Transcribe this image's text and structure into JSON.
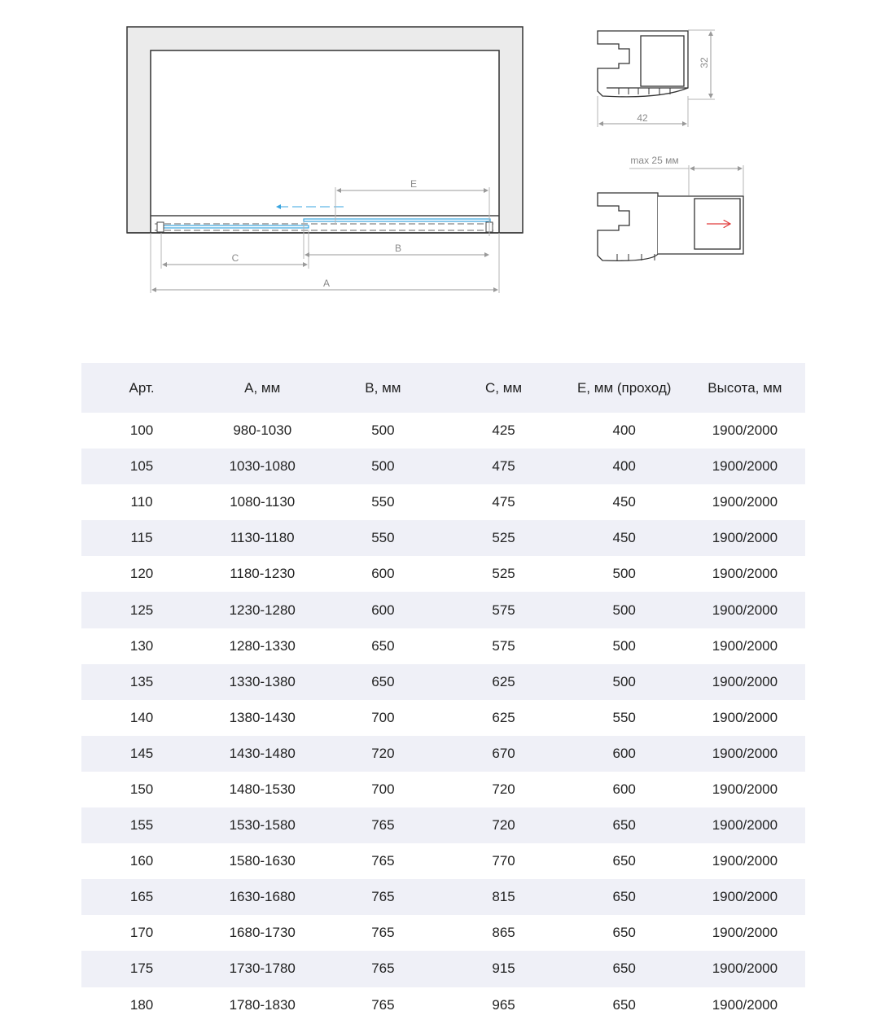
{
  "drawing": {
    "dimension_labels": {
      "A": "A",
      "B": "B",
      "C": "C",
      "E": "E"
    },
    "profile": {
      "height": "32",
      "width": "42",
      "extension": "max 25 мм"
    },
    "colors": {
      "glass": "#3aa5e0",
      "arrow_extension": "#e03a3a",
      "wall": "#ebebeb",
      "dimension": "#9a9a9a"
    }
  },
  "table": {
    "headers": [
      "Арт.",
      "A, мм",
      "B, мм",
      "C, мм",
      "E, мм (проход)",
      "Высота, мм"
    ],
    "rows": [
      [
        "100",
        "980-1030",
        "500",
        "425",
        "400",
        "1900/2000"
      ],
      [
        "105",
        "1030-1080",
        "500",
        "475",
        "400",
        "1900/2000"
      ],
      [
        "110",
        "1080-1130",
        "550",
        "475",
        "450",
        "1900/2000"
      ],
      [
        "115",
        "1130-1180",
        "550",
        "525",
        "450",
        "1900/2000"
      ],
      [
        "120",
        "1180-1230",
        "600",
        "525",
        "500",
        "1900/2000"
      ],
      [
        "125",
        "1230-1280",
        "600",
        "575",
        "500",
        "1900/2000"
      ],
      [
        "130",
        "1280-1330",
        "650",
        "575",
        "500",
        "1900/2000"
      ],
      [
        "135",
        "1330-1380",
        "650",
        "625",
        "500",
        "1900/2000"
      ],
      [
        "140",
        "1380-1430",
        "700",
        "625",
        "550",
        "1900/2000"
      ],
      [
        "145",
        "1430-1480",
        "720",
        "670",
        "600",
        "1900/2000"
      ],
      [
        "150",
        "1480-1530",
        "700",
        "720",
        "600",
        "1900/2000"
      ],
      [
        "155",
        "1530-1580",
        "765",
        "720",
        "650",
        "1900/2000"
      ],
      [
        "160",
        "1580-1630",
        "765",
        "770",
        "650",
        "1900/2000"
      ],
      [
        "165",
        "1630-1680",
        "765",
        "815",
        "650",
        "1900/2000"
      ],
      [
        "170",
        "1680-1730",
        "765",
        "865",
        "650",
        "1900/2000"
      ],
      [
        "175",
        "1730-1780",
        "765",
        "915",
        "650",
        "1900/2000"
      ],
      [
        "180",
        "1780-1830",
        "765",
        "965",
        "650",
        "1900/2000"
      ]
    ]
  }
}
